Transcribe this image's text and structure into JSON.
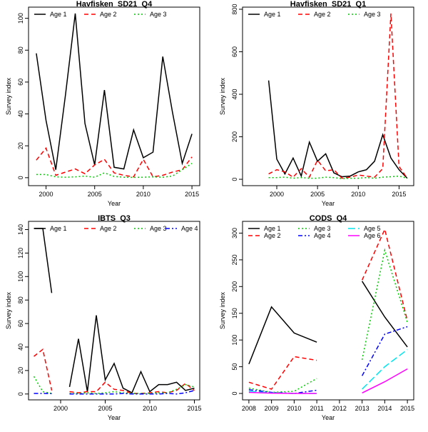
{
  "chart_data": [
    {
      "type": "line",
      "title": "Havfisken_SD21_Q4",
      "xlabel": "Year",
      "ylabel": "Survey index",
      "xlim": [
        1998.2,
        2015.8
      ],
      "ylim": [
        -5,
        107
      ],
      "xticks": [
        2000,
        2005,
        2010,
        2015
      ],
      "yticks": [
        0,
        20,
        40,
        60,
        80,
        100
      ],
      "legend": "top",
      "series": [
        {
          "name": "Age 1",
          "color": "#000000",
          "dash": "solid",
          "x": [
            1999,
            2000,
            2001,
            2002,
            2003,
            2004,
            2005,
            2006,
            2007,
            2008,
            2009,
            2010,
            2011,
            2012,
            2013,
            2014,
            2015
          ],
          "y": [
            78,
            36,
            5,
            52,
            103,
            34,
            8,
            55,
            6.5,
            5.5,
            30,
            12.5,
            16,
            76,
            41,
            9,
            27.5
          ]
        },
        {
          "name": "Age 2",
          "color": "#ff0000",
          "dash": "dashed",
          "x": [
            1999,
            2000,
            2001,
            2002,
            2003,
            2004,
            2005,
            2006,
            2007,
            2008,
            2009,
            2010,
            2011,
            2012,
            2013,
            2014,
            2015
          ],
          "y": [
            11,
            18.5,
            1.5,
            3.5,
            5.5,
            2.5,
            8,
            11.5,
            3,
            1.5,
            0.5,
            11.5,
            0.5,
            1.5,
            3.5,
            5,
            13
          ]
        },
        {
          "name": "Age 3",
          "color": "#00cc00",
          "dash": "dotted",
          "x": [
            1999,
            2000,
            2001,
            2002,
            2003,
            2004,
            2005,
            2006,
            2007,
            2008,
            2009,
            2010,
            2011,
            2012,
            2013,
            2014,
            2015
          ],
          "y": [
            2,
            2,
            0.5,
            0.3,
            0.5,
            1,
            0.3,
            3,
            0.8,
            0.3,
            0.2,
            0.3,
            0.5,
            0.3,
            1,
            5,
            9
          ]
        }
      ]
    },
    {
      "type": "line",
      "title": "Havfisken_SD21_Q1",
      "xlabel": "Year",
      "ylabel": "Survey index",
      "xlim": [
        1995.8,
        2016.8
      ],
      "ylim": [
        -30,
        810
      ],
      "xticks": [
        2000,
        2005,
        2010,
        2015
      ],
      "yticks": [
        0,
        200,
        400,
        600,
        800
      ],
      "legend": "top",
      "series": [
        {
          "name": "Age 1",
          "color": "#000000",
          "dash": "solid",
          "x": [
            1999,
            2000,
            2001,
            2002,
            2003,
            2004,
            2005,
            2006,
            2007,
            2008,
            2009,
            2010,
            2011,
            2012,
            2013,
            2014,
            2015,
            2016
          ],
          "y": [
            465,
            95,
            25,
            100,
            15,
            175,
            85,
            120,
            30,
            12,
            15,
            35,
            45,
            85,
            210,
            100,
            45,
            5
          ]
        },
        {
          "name": "Age 2",
          "color": "#ff0000",
          "dash": "dashed",
          "x": [
            1999,
            2000,
            2001,
            2002,
            2003,
            2004,
            2005,
            2006,
            2007,
            2008,
            2009,
            2010,
            2011,
            2012,
            2013,
            2014,
            2015,
            2016
          ],
          "y": [
            25,
            45,
            35,
            10,
            50,
            10,
            90,
            40,
            45,
            5,
            10,
            20,
            15,
            10,
            50,
            780,
            60,
            5
          ]
        },
        {
          "name": "Age 3",
          "color": "#00cc00",
          "dash": "dotted",
          "x": [
            1999,
            2000,
            2001,
            2002,
            2003,
            2004,
            2005,
            2006,
            2007,
            2008,
            2009,
            2010,
            2011,
            2012,
            2013,
            2014,
            2015,
            2016
          ],
          "y": [
            8,
            8,
            10,
            5,
            8,
            5,
            5,
            10,
            8,
            3,
            5,
            5,
            8,
            5,
            10,
            12,
            15,
            5
          ]
        }
      ]
    },
    {
      "type": "line",
      "title": "IBTS_Q3",
      "xlabel": "Year",
      "ylabel": "Survey index",
      "xlim": [
        1996.4,
        2015.6
      ],
      "ylim": [
        -5,
        147
      ],
      "xticks": [
        2000,
        2005,
        2010,
        2015
      ],
      "yticks": [
        0,
        20,
        40,
        60,
        80,
        100,
        120,
        140
      ],
      "legend": "top",
      "series": [
        {
          "name": "Age 1",
          "color": "#000000",
          "dash": "solid",
          "x": [
            1997,
            1998,
            1999,
            null,
            2001,
            2002,
            2003,
            2004,
            2005,
            2006,
            2007,
            2008,
            2009,
            2010,
            2011,
            2012,
            2013,
            2014,
            2015
          ],
          "y": [
            141,
            141,
            86,
            null,
            6,
            47,
            2,
            67,
            12,
            26,
            5,
            1,
            19,
            2,
            8,
            8,
            10,
            3,
            5
          ]
        },
        {
          "name": "Age 2",
          "color": "#ff0000",
          "dash": "dashed",
          "x": [
            1997,
            1998,
            1999,
            null,
            2001,
            2002,
            2003,
            2004,
            2005,
            2006,
            2007,
            2008,
            2009,
            2010,
            2011,
            2012,
            2013,
            2014,
            2015
          ],
          "y": [
            32,
            38,
            3,
            null,
            2,
            1,
            2,
            2,
            10,
            4,
            3,
            0.5,
            0.5,
            1,
            2,
            1,
            3,
            9,
            3
          ]
        },
        {
          "name": "Age 3",
          "color": "#00cc00",
          "dash": "dotted",
          "x": [
            1997,
            1998,
            1999,
            null,
            2001,
            2002,
            2003,
            2004,
            2005,
            2006,
            2007,
            2008,
            2009,
            2010,
            2011,
            2012,
            2013,
            2014,
            2015
          ],
          "y": [
            15,
            2,
            0.5,
            null,
            0.5,
            0.5,
            1,
            0.5,
            1,
            2,
            1,
            0.5,
            0.5,
            0.5,
            1,
            1,
            4,
            8,
            6
          ]
        },
        {
          "name": "Age 4",
          "color": "#0000ff",
          "dash": "dotdash",
          "x": [
            1997,
            1998,
            1999,
            null,
            2001,
            2002,
            2003,
            2004,
            2005,
            2006,
            2007,
            2008,
            2009,
            2010,
            2011,
            2012,
            2013,
            2014,
            2015
          ],
          "y": [
            0.5,
            0.5,
            0.3,
            null,
            0,
            0,
            0,
            0,
            0,
            0,
            0.5,
            0,
            0,
            0,
            0,
            0.5,
            0,
            1,
            3
          ]
        }
      ]
    },
    {
      "type": "line",
      "title": "CODS_Q4",
      "xlabel": "Year",
      "ylabel": "Survey index",
      "xlim": [
        2007.72,
        2015.28
      ],
      "ylim": [
        -12,
        322
      ],
      "xticks": [
        2008,
        2009,
        2010,
        2011,
        2012,
        2013,
        2014,
        2015
      ],
      "yticks": [
        0,
        50,
        100,
        150,
        200,
        250,
        300
      ],
      "legend": "top",
      "series": [
        {
          "name": "Age 1",
          "color": "#000000",
          "dash": "solid",
          "x": [
            2008,
            2009,
            2010,
            2011,
            null,
            2013,
            2014,
            2015
          ],
          "y": [
            55,
            162,
            113,
            96,
            null,
            210,
            143,
            87
          ]
        },
        {
          "name": "Age 2",
          "color": "#ff0000",
          "dash": "dashed",
          "x": [
            2008,
            2009,
            2010,
            2011,
            null,
            2013,
            2014,
            2015
          ],
          "y": [
            21,
            8,
            69,
            62,
            null,
            212,
            307,
            136
          ]
        },
        {
          "name": "Age 3",
          "color": "#00cc00",
          "dash": "dotted",
          "x": [
            2008,
            2009,
            2010,
            2011,
            null,
            2013,
            2014,
            2015
          ],
          "y": [
            10,
            2,
            4,
            28,
            null,
            63,
            268,
            133
          ]
        },
        {
          "name": "Age 4",
          "color": "#0000ff",
          "dash": "dotdash",
          "x": [
            2008,
            2009,
            2010,
            2011,
            null,
            2013,
            2014,
            2015
          ],
          "y": [
            7,
            2,
            0,
            6,
            null,
            33,
            111,
            125
          ]
        },
        {
          "name": "Age 5",
          "color": "#00e5ee",
          "dash": "longdash",
          "x": [
            2008,
            2009,
            2010,
            2011,
            null,
            2013,
            2014,
            2015
          ],
          "y": [
            4,
            1,
            0,
            0,
            null,
            8,
            50,
            82
          ]
        },
        {
          "name": "Age 6",
          "color": "#ff00ff",
          "dash": "solid",
          "x": [
            2008,
            2009,
            2010,
            2011,
            null,
            2013,
            2014,
            2015
          ],
          "y": [
            2,
            0.5,
            0,
            0,
            null,
            1,
            22,
            46
          ]
        }
      ]
    }
  ]
}
